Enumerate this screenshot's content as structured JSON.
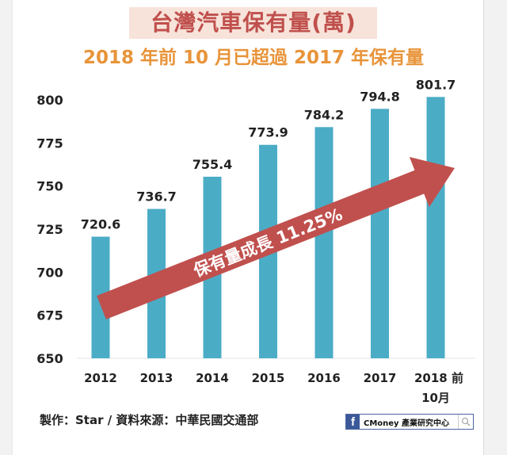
{
  "header": {
    "title": "台灣汽車保有量(萬)",
    "subtitle": "2018 年前 10 月已超過 2017 年保有量"
  },
  "chart_data": {
    "type": "bar",
    "title": "台灣汽車保有量(萬)",
    "subtitle": "2018 年前 10 月已超過 2017 年保有量",
    "categories": [
      "2012",
      "2013",
      "2014",
      "2015",
      "2016",
      "2017",
      "2018 前\n10月"
    ],
    "category_lines": [
      [
        "2012"
      ],
      [
        "2013"
      ],
      [
        "2014"
      ],
      [
        "2015"
      ],
      [
        "2016"
      ],
      [
        "2017"
      ],
      [
        "2018 前",
        "10月"
      ]
    ],
    "values": [
      720.6,
      736.7,
      755.4,
      773.9,
      784.2,
      794.8,
      801.7
    ],
    "data_labels": [
      "720.6",
      "736.7",
      "755.4",
      "773.9",
      "784.2",
      "794.8",
      "801.7"
    ],
    "ylim": [
      650,
      810
    ],
    "yticks": [
      650,
      675,
      700,
      725,
      750,
      775,
      800
    ],
    "ytick_labels": [
      "650",
      "675",
      "700",
      "725",
      "750",
      "775",
      "800"
    ],
    "xlabel": "",
    "ylabel": "",
    "grid": false,
    "annotation": "保有量成長 11.25%",
    "colors": {
      "bar": "#4bacc6",
      "arrow": "#c0504d",
      "title": "#c0504d",
      "subtitle": "#e8943a"
    }
  },
  "footer": {
    "credit": "製作：Star / 資料來源：中華民國交通部",
    "badge_label": "CMoney 產業研究中心",
    "badge_icon": "facebook-icon",
    "search_icon": "search-icon"
  }
}
